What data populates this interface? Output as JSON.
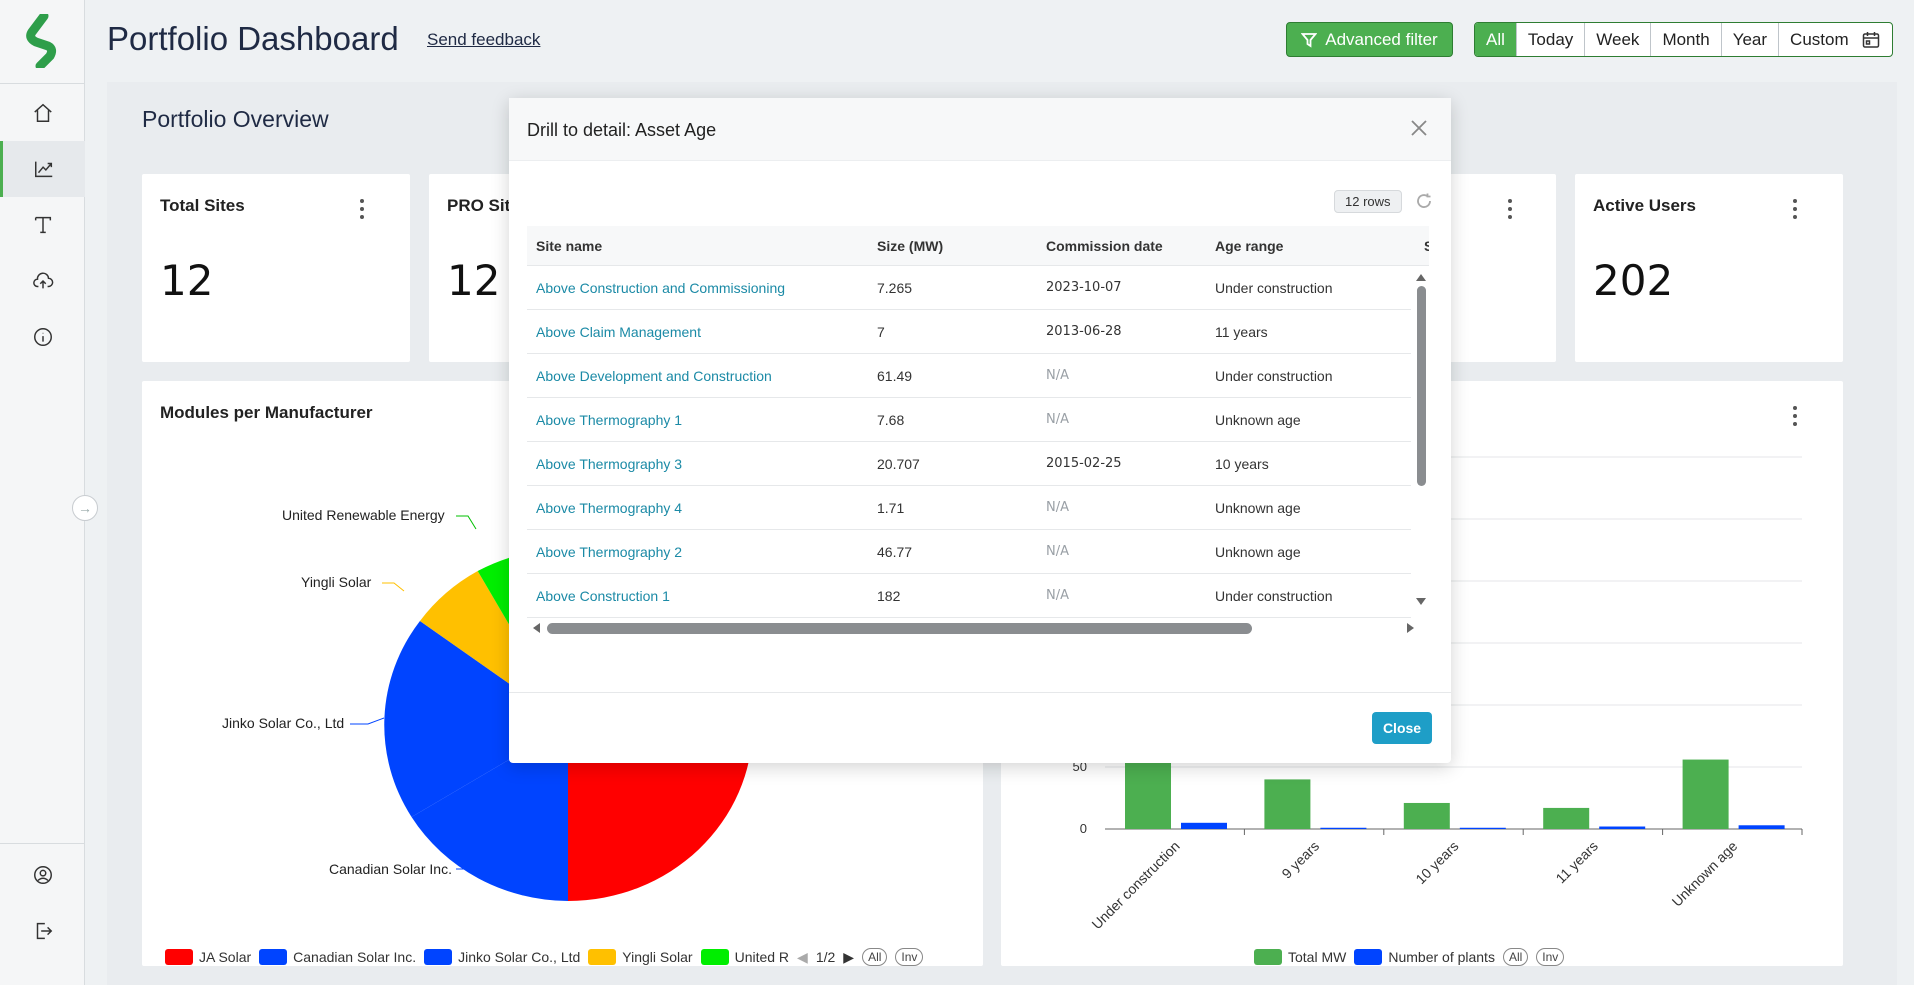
{
  "header": {
    "title": "Portfolio Dashboard",
    "feedback_link": "Send feedback",
    "advanced_filter": "Advanced filter",
    "ranges": [
      "All",
      "Today",
      "Week",
      "Month",
      "Year",
      "Custom"
    ],
    "active_range": "All"
  },
  "sidebar": {
    "items": [
      {
        "icon": "home-icon"
      },
      {
        "icon": "chart-line-icon",
        "active": true
      },
      {
        "icon": "text-tool-icon"
      },
      {
        "icon": "cloud-upload-icon"
      },
      {
        "icon": "info-icon"
      }
    ],
    "bottom": [
      {
        "icon": "user-circle-icon"
      },
      {
        "icon": "logout-icon"
      }
    ]
  },
  "overview": {
    "title": "Portfolio Overview",
    "cards": [
      {
        "title": "Total Sites",
        "value": "12"
      },
      {
        "title": "PRO Sit",
        "value": "12"
      },
      {
        "title": "Active Users",
        "value": "202"
      }
    ]
  },
  "modules_chart": {
    "title": "Modules per Manufacturer",
    "labels": {
      "united": "United Renewable Energy",
      "yingli": "Yingli Solar",
      "jinko": "Jinko Solar Co., Ltd",
      "canadian": "Canadian Solar Inc."
    },
    "legend": [
      {
        "name": "JA Solar",
        "color": "#ff0000"
      },
      {
        "name": "Canadian Solar Inc.",
        "color": "#0044ff"
      },
      {
        "name": "Jinko Solar Co., Ltd",
        "color": "#0044ff"
      },
      {
        "name": "Yingli Solar",
        "color": "#ffc000"
      },
      {
        "name": "United R",
        "color": "#00ee00"
      }
    ],
    "pager": "1/2",
    "pill_all": "All",
    "pill_inv": "Inv"
  },
  "chart_data": {
    "type": "bar",
    "title": "",
    "categories": [
      "Under construction",
      "9 years",
      "10 years",
      "11 years",
      "Unknown age"
    ],
    "series": [
      {
        "name": "Total MW",
        "color": "#4caf50",
        "values": [
          58,
          40,
          21,
          17,
          56
        ]
      },
      {
        "name": "Number of plants",
        "color": "#0044ff",
        "values": [
          5,
          1,
          1,
          2,
          3
        ]
      }
    ],
    "y_ticks": [
      "0",
      "50"
    ],
    "ylim": [
      0,
      300
    ],
    "legend_position": "bottom",
    "pill_all": "All",
    "pill_inv": "Inv"
  },
  "modal": {
    "title": "Drill to detail: Asset Age",
    "rows_badge": "12 rows",
    "columns": [
      "Site name",
      "Size (MW)",
      "Commission date",
      "Age range",
      "S"
    ],
    "rows": [
      {
        "site": "Above Construction and Commissioning",
        "size": "7.265",
        "date": "2023-10-07",
        "age": "Under construction"
      },
      {
        "site": "Above Claim Management",
        "size": "7",
        "date": "2013-06-28",
        "age": "11 years"
      },
      {
        "site": "Above Development and Construction",
        "size": "61.49",
        "date": "N/A",
        "age": "Under construction"
      },
      {
        "site": "Above Thermography 1",
        "size": "7.68",
        "date": "N/A",
        "age": "Unknown age"
      },
      {
        "site": "Above Thermography 3",
        "size": "20.707",
        "date": "2015-02-25",
        "age": "10 years"
      },
      {
        "site": "Above Thermography 4",
        "size": "1.71",
        "date": "N/A",
        "age": "Unknown age"
      },
      {
        "site": "Above Thermography 2",
        "size": "46.77",
        "date": "N/A",
        "age": "Unknown age"
      },
      {
        "site": "Above Construction 1",
        "size": "182",
        "date": "N/A",
        "age": "Under construction"
      }
    ],
    "close_label": "Close"
  }
}
